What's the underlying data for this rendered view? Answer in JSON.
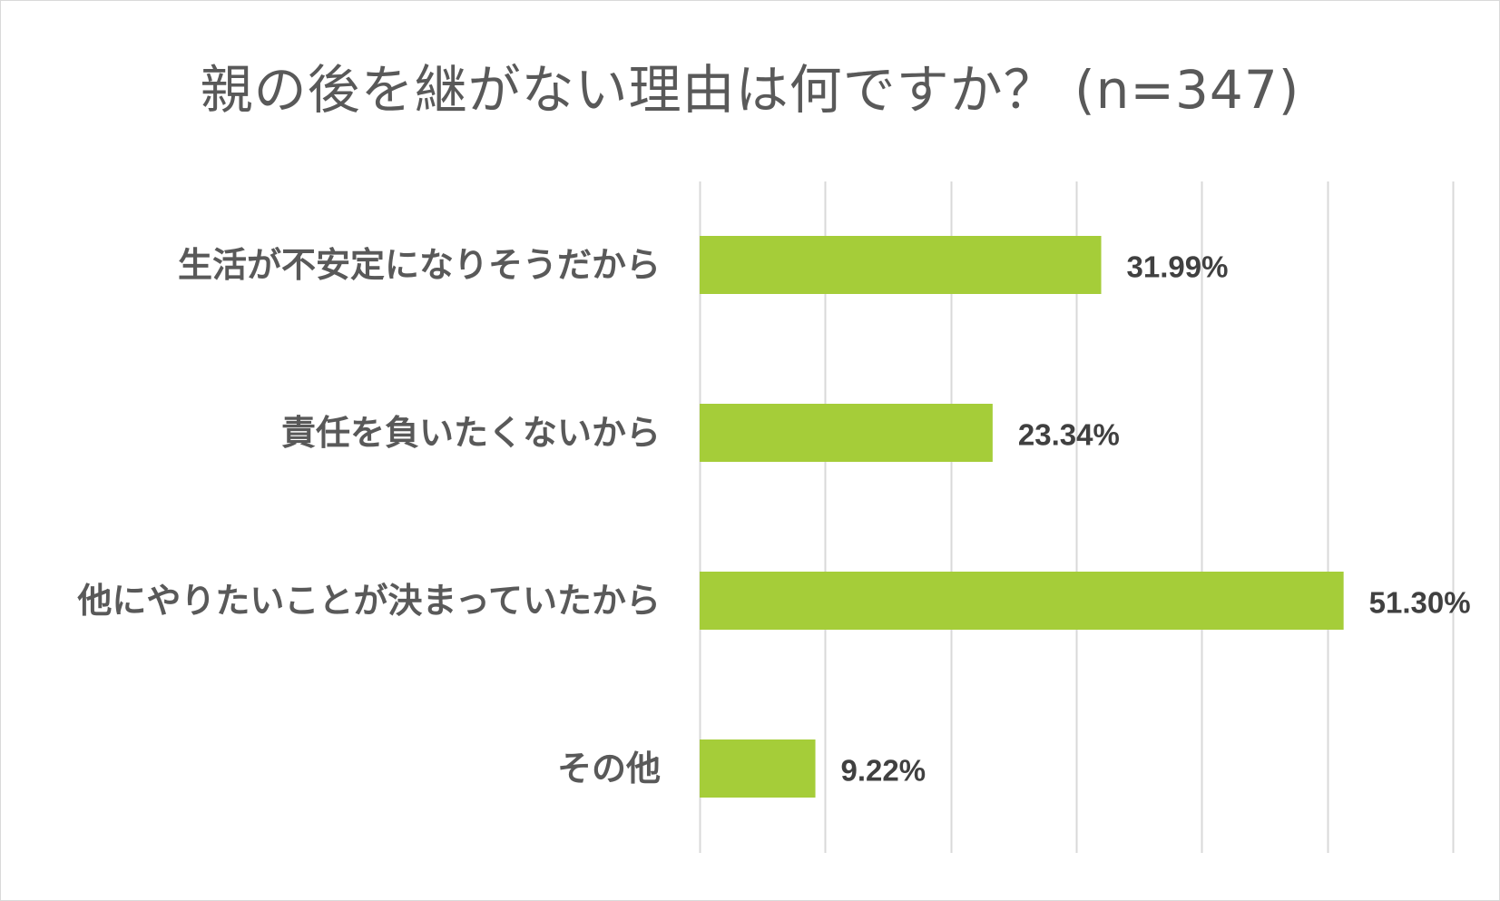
{
  "chart_data": {
    "type": "bar",
    "orientation": "horizontal",
    "title": "親の後を継がない理由は何ですか？ (n=347)",
    "categories": [
      "生活が不安定になりそうだから",
      "責任を負いたくないから",
      "他にやりたいことが決まっていたから",
      "その他"
    ],
    "series": [
      {
        "values": [
          31.99,
          23.34,
          51.3,
          9.22
        ],
        "value_labels": [
          "31.99%",
          "23.34%",
          "51.30%",
          "9.22%"
        ]
      }
    ],
    "xlim": [
      0,
      60
    ],
    "grid_step": 10,
    "grid": true,
    "axis_ticks_visible": false,
    "legend": "none",
    "colors": {
      "bar": "#a5cd39",
      "grid": "#d9d9d9",
      "category_text": "#595959",
      "value_text": "#404040",
      "title_text": "#595959"
    }
  }
}
